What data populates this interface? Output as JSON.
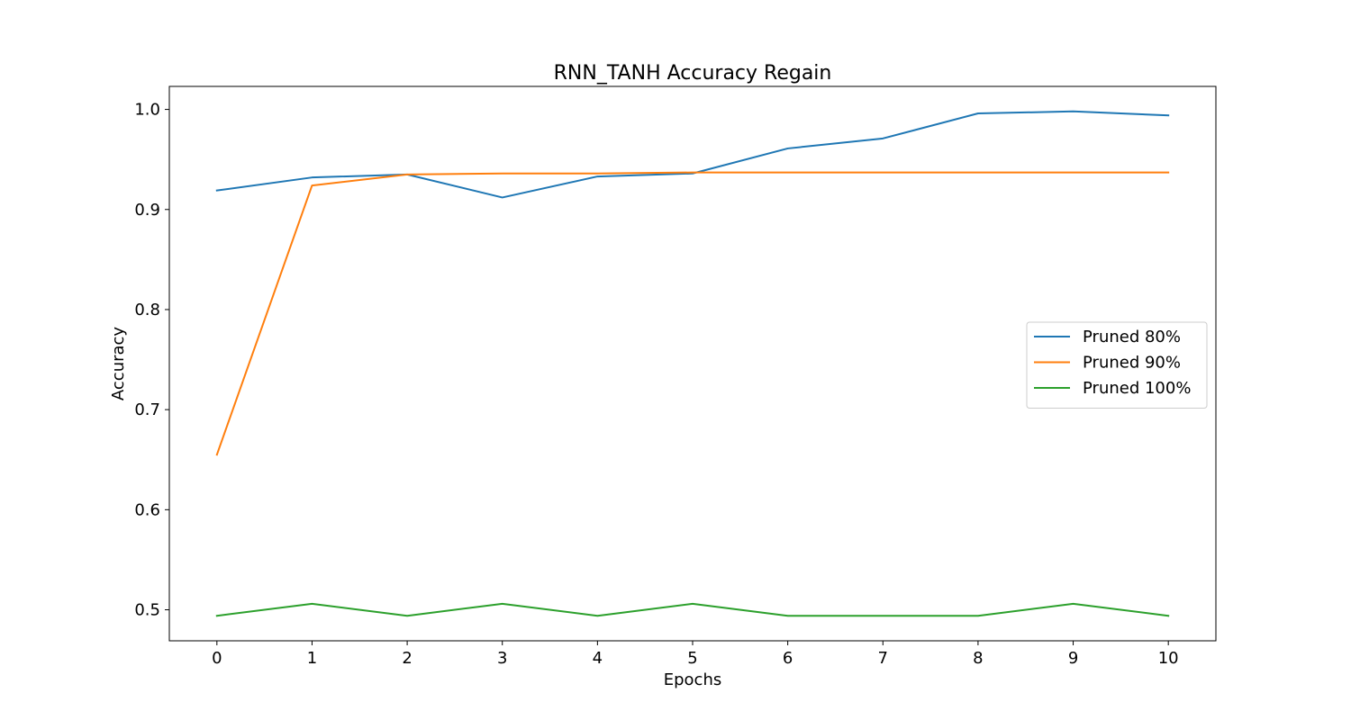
{
  "chart_data": {
    "type": "line",
    "title": "RNN_TANH Accuracy Regain",
    "xlabel": "Epochs",
    "ylabel": "Accuracy",
    "x": [
      0,
      1,
      2,
      3,
      4,
      5,
      6,
      7,
      8,
      9,
      10
    ],
    "xticks": [
      "0",
      "1",
      "2",
      "3",
      "4",
      "5",
      "6",
      "7",
      "8",
      "9",
      "10"
    ],
    "yticks": [
      "0.5",
      "0.6",
      "0.7",
      "0.8",
      "0.9",
      "1.0"
    ],
    "xlim": [
      -0.5,
      10.5
    ],
    "ylim": [
      0.469,
      1.023
    ],
    "grid": false,
    "legend_position": "center-right",
    "series": [
      {
        "name": "Pruned 80%",
        "color": "#1f77b4",
        "values": [
          0.919,
          0.932,
          0.935,
          0.912,
          0.933,
          0.936,
          0.961,
          0.971,
          0.996,
          0.998,
          0.994
        ]
      },
      {
        "name": "Pruned 90%",
        "color": "#ff7f0e",
        "values": [
          0.655,
          0.924,
          0.935,
          0.936,
          0.936,
          0.937,
          0.937,
          0.937,
          0.937,
          0.937,
          0.937
        ]
      },
      {
        "name": "Pruned 100%",
        "color": "#2ca02c",
        "values": [
          0.494,
          0.506,
          0.494,
          0.506,
          0.494,
          0.506,
          0.494,
          0.494,
          0.494,
          0.506,
          0.494
        ]
      }
    ]
  }
}
